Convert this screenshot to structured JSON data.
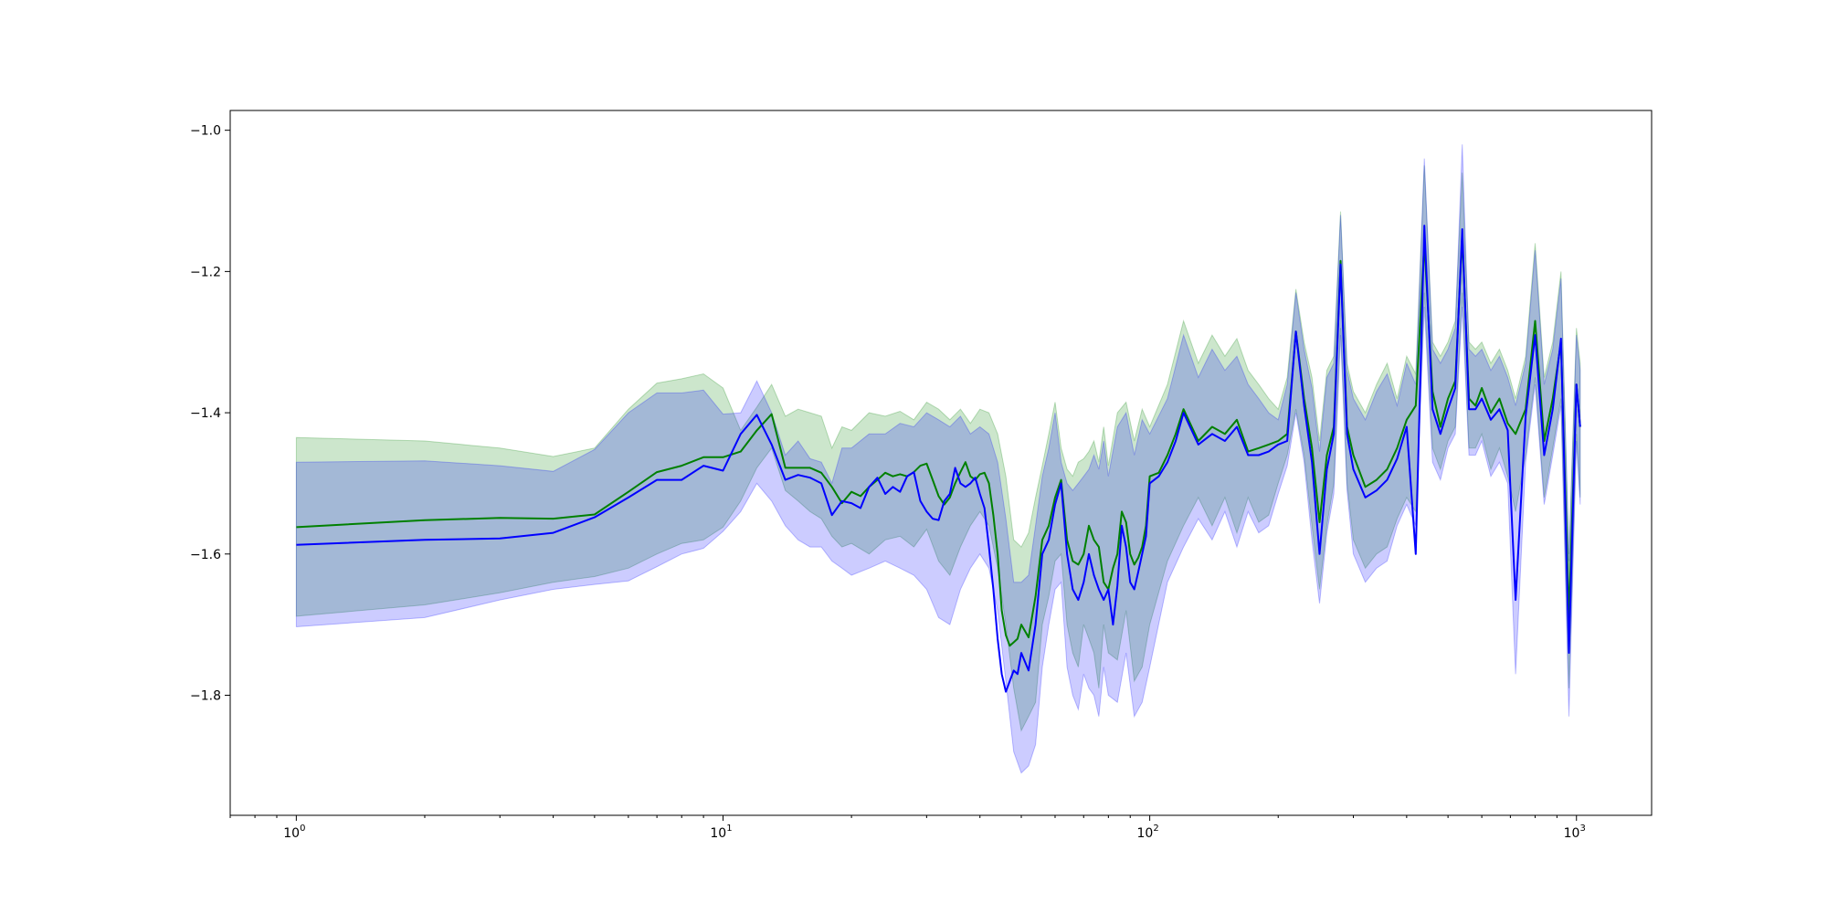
{
  "chart_data": {
    "type": "line",
    "title": "",
    "xlabel": "",
    "ylabel": "",
    "x_scale": "log",
    "xlim": [
      0.7,
      1500
    ],
    "ylim": [
      -1.97,
      -0.972
    ],
    "grid": false,
    "legend": "none",
    "x_ticks": [
      {
        "value": 1,
        "base": "10",
        "exp": "0"
      },
      {
        "value": 10,
        "base": "10",
        "exp": "1"
      },
      {
        "value": 100,
        "base": "10",
        "exp": "2"
      },
      {
        "value": 1000,
        "base": "10",
        "exp": "3"
      }
    ],
    "y_ticks": [
      {
        "value": -1.0,
        "label": "−1.0"
      },
      {
        "value": -1.2,
        "label": "−1.2"
      },
      {
        "value": -1.4,
        "label": "−1.4"
      },
      {
        "value": -1.6,
        "label": "−1.6"
      },
      {
        "value": -1.8,
        "label": "−1.8"
      }
    ],
    "series": [
      {
        "color": "#008000",
        "band_color": "#008000",
        "band_opacity": 0.2,
        "x": [
          1,
          2,
          3,
          4,
          5,
          6,
          7,
          8,
          9,
          10,
          11,
          12,
          13,
          14,
          15,
          16,
          17,
          18,
          19,
          20,
          21,
          22,
          23,
          24,
          25,
          26,
          27,
          28,
          29,
          30,
          31,
          32,
          33,
          34,
          35,
          36,
          37,
          38,
          39,
          40,
          41,
          42,
          43,
          44,
          45,
          46,
          47,
          48,
          49,
          50,
          52,
          54,
          56,
          58,
          60,
          62,
          64,
          66,
          68,
          70,
          72,
          74,
          76,
          78,
          80,
          82,
          84,
          86,
          88,
          90,
          92,
          94,
          96,
          98,
          100,
          105,
          110,
          115,
          120,
          130,
          140,
          150,
          160,
          170,
          180,
          190,
          200,
          210,
          220,
          230,
          240,
          250,
          260,
          270,
          280,
          290,
          300,
          320,
          340,
          360,
          380,
          400,
          420,
          440,
          460,
          480,
          500,
          520,
          540,
          560,
          580,
          600,
          630,
          660,
          690,
          720,
          760,
          800,
          840,
          880,
          920,
          960,
          1000,
          1020
        ],
        "y": [
          -1.562,
          -1.552,
          -1.549,
          -1.55,
          -1.544,
          -1.512,
          -1.484,
          -1.475,
          -1.463,
          -1.463,
          -1.455,
          -1.425,
          -1.402,
          -1.478,
          -1.478,
          -1.478,
          -1.485,
          -1.505,
          -1.528,
          -1.512,
          -1.518,
          -1.505,
          -1.495,
          -1.485,
          -1.49,
          -1.487,
          -1.49,
          -1.484,
          -1.475,
          -1.472,
          -1.495,
          -1.518,
          -1.53,
          -1.52,
          -1.5,
          -1.484,
          -1.47,
          -1.49,
          -1.495,
          -1.487,
          -1.485,
          -1.5,
          -1.545,
          -1.6,
          -1.68,
          -1.715,
          -1.73,
          -1.725,
          -1.72,
          -1.7,
          -1.718,
          -1.66,
          -1.58,
          -1.56,
          -1.52,
          -1.495,
          -1.58,
          -1.61,
          -1.615,
          -1.6,
          -1.56,
          -1.58,
          -1.59,
          -1.64,
          -1.65,
          -1.62,
          -1.6,
          -1.54,
          -1.555,
          -1.6,
          -1.615,
          -1.605,
          -1.59,
          -1.56,
          -1.49,
          -1.485,
          -1.46,
          -1.43,
          -1.395,
          -1.44,
          -1.42,
          -1.43,
          -1.41,
          -1.455,
          -1.45,
          -1.445,
          -1.44,
          -1.43,
          -1.285,
          -1.38,
          -1.45,
          -1.555,
          -1.46,
          -1.42,
          -1.185,
          -1.42,
          -1.46,
          -1.505,
          -1.495,
          -1.48,
          -1.45,
          -1.41,
          -1.39,
          -1.16,
          -1.37,
          -1.42,
          -1.38,
          -1.355,
          -1.15,
          -1.38,
          -1.39,
          -1.365,
          -1.4,
          -1.38,
          -1.415,
          -1.43,
          -1.395,
          -1.27,
          -1.44,
          -1.38,
          -1.3,
          -1.69,
          -1.36,
          -1.42
        ]
      },
      {
        "color": "#0000ff",
        "band_color": "#0000ff",
        "band_opacity": 0.2,
        "x": [
          1,
          2,
          3,
          4,
          5,
          6,
          7,
          8,
          9,
          10,
          11,
          12,
          13,
          14,
          15,
          16,
          17,
          18,
          19,
          20,
          21,
          22,
          23,
          24,
          25,
          26,
          27,
          28,
          29,
          30,
          31,
          32,
          33,
          34,
          35,
          36,
          37,
          38,
          39,
          40,
          41,
          42,
          43,
          44,
          45,
          46,
          47,
          48,
          49,
          50,
          52,
          54,
          56,
          58,
          60,
          62,
          64,
          66,
          68,
          70,
          72,
          74,
          76,
          78,
          80,
          82,
          84,
          86,
          88,
          90,
          92,
          94,
          96,
          98,
          100,
          105,
          110,
          115,
          120,
          130,
          140,
          150,
          160,
          170,
          180,
          190,
          200,
          210,
          220,
          230,
          240,
          250,
          260,
          270,
          280,
          290,
          300,
          320,
          340,
          360,
          380,
          400,
          420,
          440,
          460,
          480,
          500,
          520,
          540,
          560,
          580,
          600,
          630,
          660,
          690,
          720,
          760,
          800,
          840,
          880,
          920,
          960,
          1000,
          1020
        ],
        "y": [
          -1.587,
          -1.58,
          -1.578,
          -1.57,
          -1.548,
          -1.52,
          -1.495,
          -1.495,
          -1.475,
          -1.482,
          -1.43,
          -1.403,
          -1.445,
          -1.495,
          -1.488,
          -1.492,
          -1.5,
          -1.545,
          -1.525,
          -1.528,
          -1.535,
          -1.505,
          -1.492,
          -1.515,
          -1.505,
          -1.512,
          -1.49,
          -1.484,
          -1.525,
          -1.54,
          -1.55,
          -1.552,
          -1.525,
          -1.515,
          -1.478,
          -1.5,
          -1.505,
          -1.5,
          -1.492,
          -1.515,
          -1.535,
          -1.59,
          -1.65,
          -1.72,
          -1.77,
          -1.795,
          -1.78,
          -1.765,
          -1.77,
          -1.74,
          -1.765,
          -1.7,
          -1.6,
          -1.58,
          -1.53,
          -1.5,
          -1.6,
          -1.65,
          -1.665,
          -1.64,
          -1.6,
          -1.63,
          -1.65,
          -1.665,
          -1.65,
          -1.7,
          -1.645,
          -1.56,
          -1.59,
          -1.64,
          -1.65,
          -1.625,
          -1.6,
          -1.575,
          -1.5,
          -1.49,
          -1.47,
          -1.44,
          -1.4,
          -1.445,
          -1.43,
          -1.44,
          -1.42,
          -1.46,
          -1.46,
          -1.455,
          -1.445,
          -1.44,
          -1.285,
          -1.39,
          -1.47,
          -1.6,
          -1.48,
          -1.43,
          -1.19,
          -1.43,
          -1.48,
          -1.52,
          -1.51,
          -1.495,
          -1.465,
          -1.42,
          -1.6,
          -1.135,
          -1.395,
          -1.43,
          -1.395,
          -1.365,
          -1.14,
          -1.395,
          -1.395,
          -1.38,
          -1.41,
          -1.395,
          -1.425,
          -1.665,
          -1.405,
          -1.29,
          -1.46,
          -1.395,
          -1.295,
          -1.74,
          -1.36,
          -1.42
        ]
      }
    ],
    "bands": [
      {
        "color": "#008000",
        "x": [
          1,
          2,
          3,
          4,
          5,
          6,
          7,
          8,
          9,
          10,
          11,
          12,
          13,
          14,
          15,
          16,
          17,
          18,
          19,
          20,
          22,
          24,
          26,
          28,
          30,
          32,
          34,
          36,
          38,
          40,
          42,
          44,
          46,
          48,
          50,
          52,
          54,
          56,
          58,
          60,
          62,
          64,
          66,
          68,
          70,
          72,
          74,
          76,
          78,
          80,
          84,
          88,
          92,
          96,
          100,
          110,
          120,
          130,
          140,
          150,
          160,
          170,
          180,
          190,
          200,
          210,
          220,
          230,
          240,
          250,
          260,
          270,
          280,
          290,
          300,
          320,
          340,
          360,
          380,
          400,
          420,
          440,
          460,
          480,
          500,
          520,
          540,
          560,
          580,
          600,
          630,
          660,
          690,
          720,
          760,
          800,
          840,
          880,
          920,
          960,
          1000,
          1020
        ],
        "upper": [
          -1.435,
          -1.44,
          -1.45,
          -1.462,
          -1.45,
          -1.395,
          -1.358,
          -1.352,
          -1.345,
          -1.365,
          -1.425,
          -1.392,
          -1.36,
          -1.405,
          -1.395,
          -1.4,
          -1.405,
          -1.45,
          -1.42,
          -1.425,
          -1.4,
          -1.405,
          -1.398,
          -1.41,
          -1.385,
          -1.395,
          -1.41,
          -1.395,
          -1.415,
          -1.395,
          -1.4,
          -1.43,
          -1.49,
          -1.58,
          -1.59,
          -1.57,
          -1.52,
          -1.475,
          -1.43,
          -1.385,
          -1.45,
          -1.48,
          -1.49,
          -1.47,
          -1.465,
          -1.455,
          -1.44,
          -1.47,
          -1.42,
          -1.475,
          -1.4,
          -1.385,
          -1.44,
          -1.395,
          -1.42,
          -1.36,
          -1.27,
          -1.33,
          -1.29,
          -1.32,
          -1.295,
          -1.34,
          -1.36,
          -1.38,
          -1.395,
          -1.35,
          -1.225,
          -1.3,
          -1.35,
          -1.44,
          -1.34,
          -1.32,
          -1.115,
          -1.33,
          -1.37,
          -1.4,
          -1.36,
          -1.33,
          -1.38,
          -1.32,
          -1.345,
          -1.05,
          -1.3,
          -1.32,
          -1.3,
          -1.27,
          -1.06,
          -1.3,
          -1.31,
          -1.3,
          -1.33,
          -1.31,
          -1.34,
          -1.38,
          -1.32,
          -1.16,
          -1.35,
          -1.3,
          -1.2,
          -1.6,
          -1.28,
          -1.33
        ],
        "lower": [
          -1.688,
          -1.672,
          -1.655,
          -1.64,
          -1.632,
          -1.62,
          -1.6,
          -1.585,
          -1.58,
          -1.562,
          -1.525,
          -1.478,
          -1.45,
          -1.51,
          -1.525,
          -1.54,
          -1.55,
          -1.575,
          -1.59,
          -1.585,
          -1.6,
          -1.58,
          -1.575,
          -1.59,
          -1.565,
          -1.61,
          -1.63,
          -1.59,
          -1.56,
          -1.54,
          -1.56,
          -1.62,
          -1.7,
          -1.79,
          -1.85,
          -1.83,
          -1.81,
          -1.7,
          -1.66,
          -1.61,
          -1.6,
          -1.7,
          -1.74,
          -1.76,
          -1.7,
          -1.72,
          -1.74,
          -1.79,
          -1.7,
          -1.74,
          -1.75,
          -1.68,
          -1.78,
          -1.76,
          -1.7,
          -1.61,
          -1.56,
          -1.52,
          -1.56,
          -1.52,
          -1.57,
          -1.52,
          -1.555,
          -1.545,
          -1.5,
          -1.46,
          -1.395,
          -1.46,
          -1.56,
          -1.65,
          -1.56,
          -1.5,
          -1.28,
          -1.5,
          -1.58,
          -1.62,
          -1.6,
          -1.59,
          -1.55,
          -1.52,
          -1.54,
          -1.23,
          -1.45,
          -1.48,
          -1.44,
          -1.42,
          -1.23,
          -1.45,
          -1.45,
          -1.43,
          -1.48,
          -1.45,
          -1.49,
          -1.54,
          -1.46,
          -1.35,
          -1.52,
          -1.45,
          -1.38,
          -1.79,
          -1.43,
          -1.52
        ]
      },
      {
        "color": "#0000ff",
        "x": [
          1,
          2,
          3,
          4,
          5,
          6,
          7,
          8,
          9,
          10,
          11,
          12,
          13,
          14,
          15,
          16,
          17,
          18,
          19,
          20,
          22,
          24,
          26,
          28,
          30,
          32,
          34,
          36,
          38,
          40,
          42,
          44,
          46,
          48,
          50,
          52,
          54,
          56,
          58,
          60,
          62,
          64,
          66,
          68,
          70,
          72,
          74,
          76,
          78,
          80,
          84,
          88,
          92,
          96,
          100,
          110,
          120,
          130,
          140,
          150,
          160,
          170,
          180,
          190,
          200,
          210,
          220,
          230,
          240,
          250,
          260,
          270,
          280,
          290,
          300,
          320,
          340,
          360,
          380,
          400,
          420,
          440,
          460,
          480,
          500,
          520,
          540,
          560,
          580,
          600,
          630,
          660,
          690,
          720,
          760,
          800,
          840,
          880,
          920,
          960,
          1000,
          1020
        ],
        "upper": [
          -1.47,
          -1.468,
          -1.475,
          -1.483,
          -1.452,
          -1.4,
          -1.372,
          -1.372,
          -1.368,
          -1.402,
          -1.4,
          -1.355,
          -1.4,
          -1.46,
          -1.44,
          -1.465,
          -1.47,
          -1.5,
          -1.45,
          -1.45,
          -1.43,
          -1.43,
          -1.415,
          -1.42,
          -1.4,
          -1.41,
          -1.42,
          -1.405,
          -1.43,
          -1.42,
          -1.43,
          -1.47,
          -1.55,
          -1.64,
          -1.64,
          -1.63,
          -1.56,
          -1.49,
          -1.45,
          -1.4,
          -1.47,
          -1.5,
          -1.51,
          -1.5,
          -1.49,
          -1.48,
          -1.46,
          -1.48,
          -1.44,
          -1.49,
          -1.42,
          -1.4,
          -1.46,
          -1.41,
          -1.43,
          -1.38,
          -1.29,
          -1.35,
          -1.31,
          -1.34,
          -1.32,
          -1.36,
          -1.38,
          -1.4,
          -1.41,
          -1.36,
          -1.23,
          -1.31,
          -1.365,
          -1.455,
          -1.35,
          -1.33,
          -1.12,
          -1.34,
          -1.38,
          -1.41,
          -1.37,
          -1.345,
          -1.39,
          -1.33,
          -1.36,
          -1.04,
          -1.31,
          -1.33,
          -1.31,
          -1.28,
          -1.02,
          -1.31,
          -1.32,
          -1.31,
          -1.34,
          -1.32,
          -1.35,
          -1.39,
          -1.33,
          -1.17,
          -1.36,
          -1.31,
          -1.21,
          -1.61,
          -1.29,
          -1.34
        ],
        "lower": [
          -1.703,
          -1.69,
          -1.665,
          -1.65,
          -1.643,
          -1.638,
          -1.618,
          -1.6,
          -1.592,
          -1.568,
          -1.54,
          -1.5,
          -1.525,
          -1.56,
          -1.58,
          -1.59,
          -1.59,
          -1.61,
          -1.62,
          -1.63,
          -1.62,
          -1.61,
          -1.62,
          -1.63,
          -1.65,
          -1.69,
          -1.7,
          -1.65,
          -1.62,
          -1.6,
          -1.62,
          -1.68,
          -1.78,
          -1.88,
          -1.91,
          -1.9,
          -1.87,
          -1.76,
          -1.7,
          -1.65,
          -1.64,
          -1.76,
          -1.8,
          -1.82,
          -1.77,
          -1.79,
          -1.8,
          -1.83,
          -1.76,
          -1.8,
          -1.81,
          -1.74,
          -1.83,
          -1.81,
          -1.76,
          -1.64,
          -1.59,
          -1.55,
          -1.58,
          -1.54,
          -1.59,
          -1.54,
          -1.57,
          -1.56,
          -1.515,
          -1.475,
          -1.4,
          -1.47,
          -1.58,
          -1.67,
          -1.57,
          -1.515,
          -1.29,
          -1.51,
          -1.6,
          -1.64,
          -1.62,
          -1.61,
          -1.56,
          -1.53,
          -1.56,
          -1.25,
          -1.47,
          -1.495,
          -1.45,
          -1.43,
          -1.25,
          -1.46,
          -1.46,
          -1.44,
          -1.49,
          -1.47,
          -1.5,
          -1.77,
          -1.47,
          -1.36,
          -1.53,
          -1.46,
          -1.39,
          -1.83,
          -1.44,
          -1.53
        ]
      }
    ]
  }
}
